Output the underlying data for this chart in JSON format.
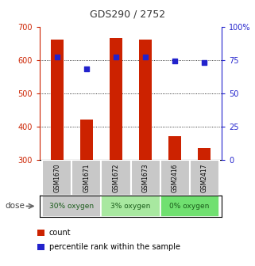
{
  "title": "GDS290 / 2752",
  "categories": [
    "GSM1670",
    "GSM1671",
    "GSM1672",
    "GSM1673",
    "GSM2416",
    "GSM2417"
  ],
  "bar_values": [
    660,
    420,
    665,
    660,
    370,
    335
  ],
  "percentile_values": [
    77,
    68,
    77,
    77,
    74,
    73
  ],
  "bar_color": "#cc2200",
  "dot_color": "#2222cc",
  "ylim_left": [
    300,
    700
  ],
  "ylim_right": [
    0,
    100
  ],
  "yticks_left": [
    300,
    400,
    500,
    600,
    700
  ],
  "yticks_right": [
    0,
    25,
    50,
    75,
    100
  ],
  "ytick_labels_right": [
    "0",
    "25",
    "50",
    "75",
    "100%"
  ],
  "dose_groups": [
    {
      "label": "30% oxygen",
      "indices": [
        0,
        1
      ],
      "color": "#c8c8c8"
    },
    {
      "label": "3% oxygen",
      "indices": [
        2,
        3
      ],
      "color": "#a8e8a0"
    },
    {
      "label": "0% oxygen",
      "indices": [
        4,
        5
      ],
      "color": "#70e070"
    }
  ],
  "sample_box_color": "#c8c8c8",
  "dose_label": "dose",
  "legend_count_label": "count",
  "legend_pct_label": "percentile rank within the sample",
  "bar_width": 0.45,
  "grid_color": "#000000",
  "left_tick_color": "#cc2200",
  "right_tick_color": "#2222cc",
  "title_color": "#333333",
  "title_fontsize": 9
}
